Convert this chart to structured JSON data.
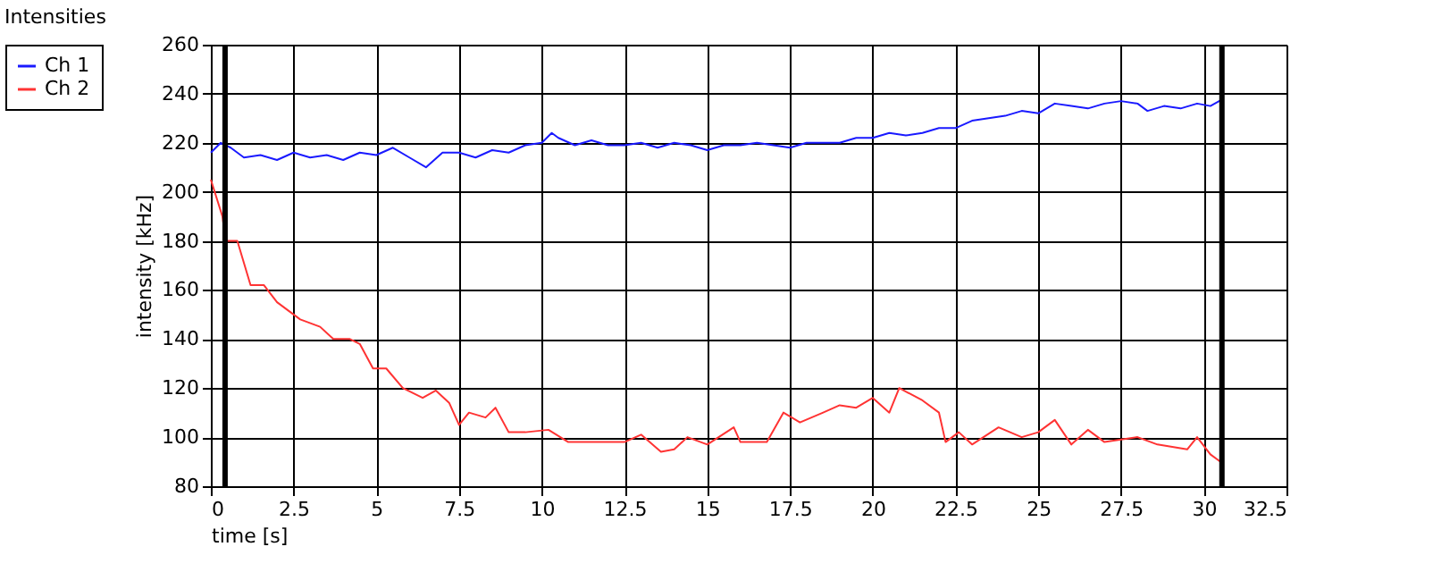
{
  "chart_data": {
    "type": "line",
    "title": "Intensities",
    "xlabel": "time [s]",
    "ylabel": "intensity [kHz]",
    "xlim": [
      0,
      32.5
    ],
    "xticks": [
      0,
      2.5,
      5,
      7.5,
      10,
      12.5,
      15,
      17.5,
      20,
      22.5,
      25,
      27.5,
      30,
      32.5
    ],
    "ylim": [
      80,
      260
    ],
    "yticks": [
      80,
      100,
      120,
      140,
      160,
      180,
      200,
      220,
      240,
      260
    ],
    "grid": true,
    "legend": "top left",
    "line_style": "solid",
    "marker": "none",
    "ref_lines": [
      {
        "axis": "x",
        "value": 0.43,
        "color": "#000000"
      },
      {
        "axis": "x",
        "value": 30.55,
        "color": "#000000"
      }
    ],
    "series": [
      {
        "name": "Ch 1",
        "color": "#1a1aff",
        "x": [
          0,
          0.3,
          0.6,
          1,
          1.5,
          2,
          2.5,
          3,
          3.5,
          4,
          4.5,
          5,
          5.5,
          6,
          6.5,
          7,
          7.5,
          8,
          8.5,
          9,
          9.5,
          10,
          10.3,
          10.5,
          11,
          11.5,
          12,
          12.5,
          13,
          13.5,
          14,
          14.5,
          15,
          15.5,
          16,
          16.5,
          17,
          17.5,
          18,
          18.5,
          19,
          19.5,
          20,
          20.5,
          21,
          21.5,
          22,
          22.5,
          23,
          23.5,
          24,
          24.5,
          25,
          25.5,
          26,
          26.5,
          27,
          27.5,
          28,
          28.3,
          28.8,
          29.3,
          29.8,
          30.2,
          30.6
        ],
        "values": [
          216,
          220,
          218,
          214,
          215,
          213,
          216,
          214,
          215,
          213,
          216,
          215,
          218,
          214,
          210,
          216,
          216,
          214,
          217,
          216,
          219,
          220,
          224,
          222,
          219,
          221,
          219,
          219,
          220,
          218,
          220,
          219,
          217,
          219,
          219,
          220,
          219,
          218,
          220,
          220,
          220,
          222,
          222,
          224,
          223,
          224,
          226,
          226,
          229,
          230,
          231,
          233,
          232,
          236,
          235,
          234,
          236,
          237,
          236,
          233,
          235,
          234,
          236,
          235,
          238
        ]
      },
      {
        "name": "Ch 2",
        "color": "#ff3333",
        "x": [
          0,
          0.35,
          0.45,
          0.8,
          1.2,
          1.6,
          2,
          2.3,
          2.7,
          3.3,
          3.7,
          4.2,
          4.5,
          4.9,
          5.3,
          5.8,
          6.4,
          6.8,
          7.2,
          7.5,
          7.8,
          8.3,
          8.6,
          9,
          9.5,
          10.2,
          10.8,
          11.5,
          12.5,
          13,
          13.6,
          14,
          14.4,
          14.8,
          15,
          15.8,
          16,
          16.8,
          17.3,
          17.8,
          18.5,
          19,
          19.5,
          20,
          20.5,
          20.8,
          21.5,
          22,
          22.2,
          22.6,
          23,
          23.8,
          24.5,
          25,
          25.5,
          26,
          26.5,
          27,
          28,
          28.6,
          29.5,
          29.8,
          30.2,
          30.5
        ],
        "values": [
          205,
          190,
          180,
          180,
          162,
          162,
          155,
          152,
          148,
          145,
          140,
          140,
          138,
          128,
          128,
          120,
          116,
          119,
          114,
          105,
          110,
          108,
          112,
          102,
          102,
          103,
          98,
          98,
          98,
          101,
          94,
          95,
          100,
          98,
          97,
          104,
          98,
          98,
          110,
          106,
          110,
          113,
          112,
          116,
          110,
          120,
          115,
          110,
          98,
          102,
          97,
          104,
          100,
          102,
          107,
          97,
          103,
          98,
          100,
          97,
          95,
          100,
          93,
          90
        ]
      }
    ]
  }
}
